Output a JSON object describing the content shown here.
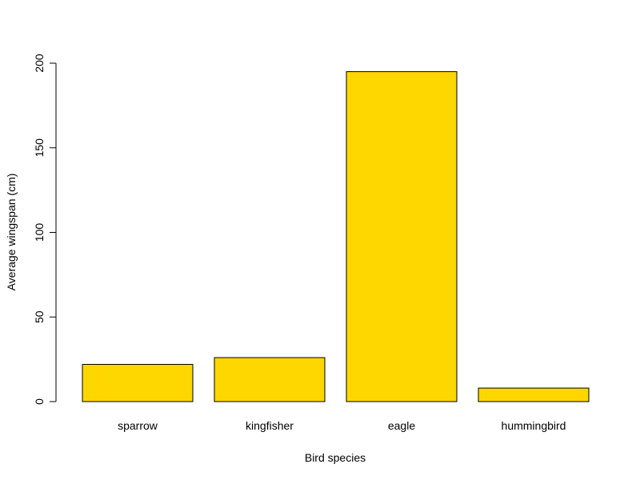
{
  "chart_data": {
    "type": "bar",
    "categories": [
      "sparrow",
      "kingfisher",
      "eagle",
      "hummingbird"
    ],
    "values": [
      22,
      26,
      195,
      8
    ],
    "title": "",
    "xlabel": "Bird species",
    "ylabel": "Average wingspan (cm)",
    "ylim": [
      0,
      200
    ],
    "yticks": [
      0,
      50,
      100,
      150,
      200
    ],
    "grid": false,
    "bar_color": "#FFD700",
    "bar_border_color": "#000000"
  }
}
